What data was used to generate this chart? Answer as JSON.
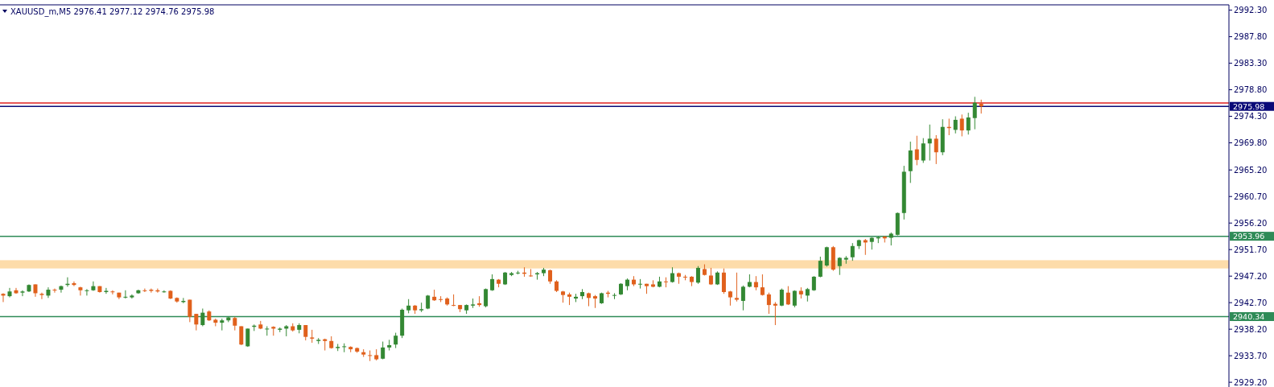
{
  "chart_data": {
    "type": "candlestick",
    "title": "XAUUSD_m,M5 2976.41 2977.12 2974.76 2975.98",
    "categories": [
      null,
      null,
      null,
      null,
      null,
      null,
      null,
      null,
      null,
      null,
      null,
      null,
      null,
      null,
      null,
      null,
      null,
      null,
      null,
      null,
      null,
      null,
      null,
      null,
      null,
      null,
      null,
      null,
      null,
      null,
      null,
      null,
      null,
      null,
      null,
      null,
      null,
      null,
      null,
      null,
      null,
      null,
      null,
      null,
      null,
      null,
      null,
      null,
      null,
      null,
      null,
      null,
      null,
      null,
      null,
      null,
      null,
      null,
      null,
      null,
      null,
      null,
      null,
      null,
      null,
      null,
      null,
      null,
      null,
      null,
      null,
      null,
      null,
      null,
      null,
      null,
      null,
      null,
      null,
      null,
      null,
      null,
      null,
      null,
      null,
      null,
      null,
      null,
      null,
      null,
      null,
      null,
      null,
      null,
      null,
      null,
      null,
      null,
      null,
      null,
      null,
      null,
      null,
      null,
      null,
      null,
      null,
      null,
      null,
      null,
      null,
      null,
      null,
      null,
      null,
      null,
      null,
      null,
      null,
      null,
      null,
      null,
      null,
      null,
      null,
      null,
      null,
      null,
      null,
      null,
      null,
      null,
      null,
      null,
      null,
      null,
      null,
      null,
      null,
      null,
      null,
      null,
      null,
      null,
      null,
      null,
      null,
      null,
      null,
      null,
      null,
      null,
      null,
      null,
      null,
      null,
      null,
      null,
      null,
      null,
      null,
      null,
      null,
      null,
      null,
      null,
      null,
      null,
      null,
      null,
      null,
      null,
      null,
      null,
      null,
      null,
      null,
      null,
      null,
      null,
      null,
      null,
      null,
      null,
      null,
      null,
      null,
      null,
      null,
      null,
      null
    ],
    "ohlc": [
      [
        2944.2,
        2944.3,
        2942.8,
        2943.9
      ],
      [
        2943.8,
        2945.2,
        2943.6,
        2944.6
      ],
      [
        2944.8,
        2945.2,
        2944.2,
        2944.3
      ],
      [
        2944.4,
        2944.8,
        2943.8,
        2944.6
      ],
      [
        2944.6,
        2945.8,
        2944.5,
        2945.7
      ],
      [
        2945.8,
        2945.8,
        2943.7,
        2944.3
      ],
      [
        2944.2,
        2944.4,
        2943.3,
        2944.0
      ],
      [
        2943.9,
        2945.3,
        2943.5,
        2944.9
      ],
      [
        2944.9,
        2945.1,
        2944.4,
        2944.8
      ],
      [
        2944.9,
        2945.6,
        2944.4,
        2945.5
      ],
      [
        2945.7,
        2947.0,
        2945.4,
        2945.9
      ],
      [
        2946.0,
        2946.3,
        2945.5,
        2945.7
      ],
      [
        2945.3,
        2945.4,
        2943.9,
        2944.8
      ],
      [
        2944.7,
        2945.0,
        2943.9,
        2944.8
      ],
      [
        2944.8,
        2946.3,
        2944.7,
        2945.5
      ],
      [
        2945.5,
        2945.5,
        2944.4,
        2944.5
      ],
      [
        2944.5,
        2945.2,
        2944.2,
        2944.7
      ],
      [
        2944.6,
        2944.8,
        2944.1,
        2944.5
      ],
      [
        2944.4,
        2944.4,
        2943.3,
        2943.6
      ],
      [
        2943.6,
        2944.8,
        2943.4,
        2943.7
      ],
      [
        2943.6,
        2944.1,
        2943.4,
        2943.9
      ],
      [
        2944.3,
        2944.9,
        2944.2,
        2944.8
      ],
      [
        2944.8,
        2945.1,
        2944.5,
        2944.7
      ],
      [
        2944.9,
        2945.1,
        2944.4,
        2944.7
      ],
      [
        2944.8,
        2945.1,
        2944.4,
        2944.6
      ],
      [
        2944.5,
        2944.8,
        2944.4,
        2944.6
      ],
      [
        2944.7,
        2944.8,
        2943.3,
        2943.4
      ],
      [
        2943.5,
        2943.6,
        2942.7,
        2942.9
      ],
      [
        2942.8,
        2943.5,
        2942.6,
        2943.0
      ],
      [
        2943.2,
        2943.2,
        2939.4,
        2940.3
      ],
      [
        2940.8,
        2940.8,
        2938.0,
        2939.0
      ],
      [
        2938.9,
        2941.7,
        2938.7,
        2941.0
      ],
      [
        2941.2,
        2941.4,
        2939.6,
        2939.7
      ],
      [
        2939.8,
        2940.0,
        2938.7,
        2939.3
      ],
      [
        2939.3,
        2940.0,
        2938.0,
        2939.7
      ],
      [
        2939.7,
        2940.3,
        2939.4,
        2940.2
      ],
      [
        2940.1,
        2940.3,
        2938.0,
        2938.8
      ],
      [
        2938.7,
        2938.7,
        2935.5,
        2935.6
      ],
      [
        2935.3,
        2938.3,
        2935.2,
        2938.3
      ],
      [
        2938.6,
        2939.0,
        2937.9,
        2938.8
      ],
      [
        2939.0,
        2939.6,
        2938.2,
        2938.3
      ],
      [
        2938.2,
        2938.7,
        2937.1,
        2938.3
      ],
      [
        2938.6,
        2938.7,
        2937.1,
        2938.3
      ],
      [
        2938.1,
        2938.5,
        2937.7,
        2938.3
      ],
      [
        2938.3,
        2938.9,
        2937.0,
        2938.7
      ],
      [
        2938.7,
        2939.2,
        2937.8,
        2938.0
      ],
      [
        2938.1,
        2939.2,
        2937.5,
        2938.9
      ],
      [
        2938.9,
        2938.9,
        2936.3,
        2936.9
      ],
      [
        2936.8,
        2938.1,
        2935.9,
        2936.6
      ],
      [
        2936.2,
        2936.7,
        2935.7,
        2936.4
      ],
      [
        2936.5,
        2936.6,
        2934.6,
        2936.2
      ],
      [
        2936.2,
        2937.0,
        2934.9,
        2935.0
      ],
      [
        2935.0,
        2935.7,
        2934.5,
        2935.2
      ],
      [
        2935.2,
        2935.8,
        2934.3,
        2935.3
      ],
      [
        2935.2,
        2935.3,
        2934.3,
        2934.8
      ],
      [
        2935.0,
        2935.1,
        2934.2,
        2934.4
      ],
      [
        2934.3,
        2934.8,
        2933.5,
        2933.9
      ],
      [
        2933.8,
        2934.6,
        2932.8,
        2933.7
      ],
      [
        2933.8,
        2934.8,
        2932.9,
        2933.1
      ],
      [
        2933.2,
        2936.1,
        2933.1,
        2935.1
      ],
      [
        2935.1,
        2936.4,
        2934.6,
        2935.5
      ],
      [
        2935.6,
        2937.6,
        2935.0,
        2937.1
      ],
      [
        2937.1,
        2941.7,
        2936.7,
        2941.5
      ],
      [
        2941.4,
        2943.3,
        2940.9,
        2942.2
      ],
      [
        2942.2,
        2942.3,
        2940.8,
        2941.4
      ],
      [
        2941.4,
        2942.7,
        2941.1,
        2941.6
      ],
      [
        2941.7,
        2944.0,
        2941.6,
        2943.9
      ],
      [
        2943.7,
        2944.9,
        2943.0,
        2943.1
      ],
      [
        2943.3,
        2943.8,
        2942.8,
        2943.2
      ],
      [
        2943.4,
        2943.6,
        2942.2,
        2942.4
      ],
      [
        2942.3,
        2944.1,
        2942.1,
        2942.2
      ],
      [
        2942.3,
        2942.3,
        2941.1,
        2941.6
      ],
      [
        2941.4,
        2942.4,
        2940.8,
        2942.3
      ],
      [
        2942.2,
        2943.4,
        2941.8,
        2942.4
      ],
      [
        2942.6,
        2943.8,
        2942.0,
        2942.3
      ],
      [
        2942.1,
        2945.1,
        2941.9,
        2945.0
      ],
      [
        2944.8,
        2947.5,
        2944.7,
        2946.7
      ],
      [
        2946.6,
        2946.7,
        2945.3,
        2945.9
      ],
      [
        2945.8,
        2947.9,
        2945.7,
        2947.8
      ],
      [
        2947.4,
        2947.9,
        2947.2,
        2947.7
      ],
      [
        2947.7,
        2948.1,
        2947.5,
        2947.8
      ],
      [
        2947.8,
        2948.7,
        2947.1,
        2947.6
      ],
      [
        2947.3,
        2948.4,
        2947.1,
        2947.2
      ],
      [
        2947.5,
        2947.9,
        2946.6,
        2947.7
      ],
      [
        2947.7,
        2948.6,
        2947.2,
        2948.3
      ],
      [
        2948.2,
        2948.3,
        2945.9,
        2946.3
      ],
      [
        2946.3,
        2946.5,
        2944.5,
        2944.7
      ],
      [
        2944.6,
        2944.7,
        2942.7,
        2944.0
      ],
      [
        2944.1,
        2944.4,
        2942.3,
        2943.7
      ],
      [
        2943.4,
        2944.2,
        2942.8,
        2943.7
      ],
      [
        2943.8,
        2945.0,
        2943.3,
        2944.5
      ],
      [
        2944.3,
        2944.4,
        2942.1,
        2943.5
      ],
      [
        2943.8,
        2944.0,
        2941.8,
        2943.4
      ],
      [
        2942.6,
        2944.4,
        2942.5,
        2944.3
      ],
      [
        2944.4,
        2944.7,
        2943.6,
        2944.2
      ],
      [
        2943.9,
        2944.3,
        2943.3,
        2944.0
      ],
      [
        2944.1,
        2946.0,
        2944.0,
        2945.9
      ],
      [
        2945.5,
        2946.8,
        2944.8,
        2946.6
      ],
      [
        2946.6,
        2947.2,
        2945.5,
        2945.8
      ],
      [
        2945.8,
        2946.7,
        2945.1,
        2945.9
      ],
      [
        2945.9,
        2945.9,
        2944.2,
        2945.5
      ],
      [
        2945.8,
        2946.5,
        2945.3,
        2945.4
      ],
      [
        2945.4,
        2947.1,
        2945.3,
        2946.3
      ],
      [
        2946.3,
        2947.0,
        2945.3,
        2946.2
      ],
      [
        2946.2,
        2948.7,
        2946.1,
        2947.7
      ],
      [
        2947.7,
        2947.8,
        2945.9,
        2947.1
      ],
      [
        2947.1,
        2947.4,
        2946.5,
        2947.0
      ],
      [
        2947.1,
        2947.2,
        2945.5,
        2946.2
      ],
      [
        2946.1,
        2948.9,
        2945.9,
        2948.6
      ],
      [
        2948.4,
        2949.2,
        2947.3,
        2947.4
      ],
      [
        2947.3,
        2948.6,
        2945.7,
        2945.8
      ],
      [
        2945.8,
        2948.0,
        2945.7,
        2947.8
      ],
      [
        2947.8,
        2948.5,
        2944.2,
        2944.5
      ],
      [
        2944.6,
        2944.7,
        2942.2,
        2943.6
      ],
      [
        2943.5,
        2947.8,
        2942.9,
        2943.2
      ],
      [
        2943.0,
        2945.6,
        2941.4,
        2945.4
      ],
      [
        2945.4,
        2947.5,
        2945.3,
        2946.2
      ],
      [
        2946.2,
        2947.2,
        2944.8,
        2945.3
      ],
      [
        2945.3,
        2947.5,
        2943.9,
        2944.0
      ],
      [
        2944.1,
        2944.4,
        2940.8,
        2942.3
      ],
      [
        2942.5,
        2942.8,
        2938.9,
        2942.2
      ],
      [
        2942.2,
        2945.1,
        2942.1,
        2944.9
      ],
      [
        2944.4,
        2945.5,
        2942.3,
        2942.4
      ],
      [
        2942.2,
        2944.8,
        2941.9,
        2944.7
      ],
      [
        2944.7,
        2945.3,
        2943.4,
        2944.1
      ],
      [
        2943.9,
        2945.2,
        2942.9,
        2945.0
      ],
      [
        2944.8,
        2947.2,
        2944.7,
        2947.1
      ],
      [
        2947.1,
        2950.5,
        2947.0,
        2949.8
      ],
      [
        2949.0,
        2952.2,
        2948.8,
        2952.1
      ],
      [
        2952.1,
        2952.3,
        2948.1,
        2948.3
      ],
      [
        2948.9,
        2950.4,
        2947.4,
        2950.3
      ],
      [
        2950.0,
        2950.6,
        2949.3,
        2950.3
      ],
      [
        2950.4,
        2952.8,
        2949.8,
        2952.3
      ],
      [
        2952.3,
        2953.4,
        2951.8,
        2953.3
      ],
      [
        2953.3,
        2953.5,
        2950.8,
        2952.9
      ],
      [
        2953.0,
        2953.8,
        2951.7,
        2953.7
      ],
      [
        2953.6,
        2953.9,
        2952.8,
        2953.8
      ],
      [
        2953.9,
        2954.0,
        2952.9,
        2953.6
      ],
      [
        2953.7,
        2954.6,
        2952.4,
        2954.4
      ],
      [
        2954.2,
        2958.0,
        2954.1,
        2957.9
      ],
      [
        2957.9,
        2965.9,
        2956.8,
        2964.9
      ],
      [
        2965.0,
        2970.0,
        2963.0,
        2968.5
      ],
      [
        2968.7,
        2971.0,
        2966.0,
        2966.9
      ],
      [
        2966.8,
        2970.6,
        2966.4,
        2969.7
      ],
      [
        2969.7,
        2972.9,
        2966.8,
        2970.5
      ],
      [
        2970.5,
        2971.1,
        2966.2,
        2968.2
      ],
      [
        2968.2,
        2973.8,
        2967.7,
        2972.5
      ],
      [
        2972.5,
        2973.9,
        2971.1,
        2972.3
      ],
      [
        2972.0,
        2974.3,
        2971.4,
        2973.7
      ],
      [
        2973.9,
        2974.6,
        2970.9,
        2971.9
      ],
      [
        2971.9,
        2974.9,
        2971.2,
        2974.1
      ],
      [
        2974.0,
        2977.6,
        2972.1,
        2976.6
      ],
      [
        2976.41,
        2977.12,
        2974.76,
        2975.98
      ],
      null,
      null,
      null,
      null,
      null,
      null,
      null,
      null,
      null,
      null,
      null,
      null,
      null,
      null,
      null,
      null,
      null,
      null,
      null,
      null,
      null,
      null,
      null,
      null,
      null,
      null,
      null,
      null,
      null,
      null,
      null,
      null,
      null,
      null,
      null,
      null,
      null,
      null
    ],
    "colors": [
      "#e0601c",
      "#338833",
      "#e0601c",
      "#338833",
      "#338833",
      "#e0601c",
      "#e0601c",
      "#338833",
      "#e0601c",
      "#338833",
      "#338833",
      "#e0601c",
      "#e0601c",
      "#338833",
      "#338833",
      "#e0601c",
      "#338833",
      "#e0601c",
      "#e0601c",
      "#338833",
      "#338833",
      "#338833",
      "#e0601c",
      "#e0601c",
      "#e0601c",
      "#338833",
      "#e0601c",
      "#e0601c",
      "#338833",
      "#e0601c",
      "#e0601c",
      "#338833",
      "#e0601c",
      "#e0601c",
      "#338833",
      "#338833",
      "#e0601c",
      "#e0601c",
      "#338833",
      "#338833",
      "#e0601c",
      "#338833",
      "#e0601c",
      "#338833",
      "#338833",
      "#e0601c",
      "#338833",
      "#e0601c",
      "#e0601c",
      "#338833",
      "#e0601c",
      "#e0601c",
      "#338833",
      "#338833",
      "#e0601c",
      "#e0601c",
      "#e0601c",
      "#e0601c",
      "#e0601c",
      "#338833",
      "#338833",
      "#338833",
      "#338833",
      "#338833",
      "#e0601c",
      "#338833",
      "#338833",
      "#e0601c",
      "#e0601c",
      "#e0601c",
      "#e0601c",
      "#e0601c",
      "#338833",
      "#338833",
      "#e0601c",
      "#338833",
      "#338833",
      "#e0601c",
      "#338833",
      "#338833",
      "#338833",
      "#e0601c",
      "#e0601c",
      "#338833",
      "#338833",
      "#e0601c",
      "#e0601c",
      "#e0601c",
      "#e0601c",
      "#338833",
      "#338833",
      "#e0601c",
      "#e0601c",
      "#338833",
      "#e0601c",
      "#338833",
      "#338833",
      "#338833",
      "#e0601c",
      "#338833",
      "#e0601c",
      "#e0601c",
      "#338833",
      "#e0601c",
      "#338833",
      "#e0601c",
      "#e0601c",
      "#e0601c",
      "#338833",
      "#e0601c",
      "#e0601c",
      "#338833",
      "#e0601c",
      "#e0601c",
      "#e0601c",
      "#338833",
      "#338833",
      "#e0601c",
      "#e0601c",
      "#e0601c",
      "#e0601c",
      "#338833",
      "#e0601c",
      "#338833",
      "#e0601c",
      "#338833",
      "#338833",
      "#338833",
      "#338833",
      "#e0601c",
      "#338833",
      "#338833",
      "#338833",
      "#338833",
      "#e0601c",
      "#338833",
      "#338833",
      "#e0601c",
      "#338833",
      "#338833",
      "#338833",
      "#338833",
      "#e0601c",
      "#338833",
      "#338833",
      "#e0601c",
      "#338833",
      "#e0601c",
      "#338833",
      "#e0601c",
      "#338833",
      "#338833",
      "#e0601c",
      null,
      null,
      null,
      null,
      null,
      null,
      null,
      null,
      null,
      null,
      null,
      null,
      null,
      null,
      null,
      null,
      null,
      null,
      null,
      null,
      null,
      null,
      null,
      null,
      null,
      null,
      null,
      null,
      null,
      null,
      null,
      null,
      null,
      null,
      null,
      null,
      null,
      null
    ],
    "ylim": [
      2928.4,
      2993.2
    ],
    "yticks": [
      {
        "value": 2992.3,
        "label": "2992.30"
      },
      {
        "value": 2987.8,
        "label": "2987.80"
      },
      {
        "value": 2983.3,
        "label": "2983.30"
      },
      {
        "value": 2978.8,
        "label": "2978.80"
      },
      {
        "value": 2974.3,
        "label": "2974.30"
      },
      {
        "value": 2969.8,
        "label": "2969.80"
      },
      {
        "value": 2965.2,
        "label": "2965.20"
      },
      {
        "value": 2960.7,
        "label": "2960.70"
      },
      {
        "value": 2956.2,
        "label": "2956.20"
      },
      {
        "value": 2951.7,
        "label": "2951.70"
      },
      {
        "value": 2947.2,
        "label": "2947.20"
      },
      {
        "value": 2942.7,
        "label": "2942.70"
      },
      {
        "value": 2938.2,
        "label": "2938.20"
      },
      {
        "value": 2933.7,
        "label": "2933.70"
      },
      {
        "value": 2929.2,
        "label": "2929.20"
      }
    ],
    "ref_lines": [
      {
        "axis": "y",
        "value": 2976.54,
        "color": "#e02020"
      },
      {
        "axis": "y",
        "value": 2975.98,
        "label": "2975.98",
        "color": "#0a0a78"
      },
      {
        "axis": "y",
        "value": 2953.96,
        "label": "2953.96",
        "color": "#2e8b57"
      },
      {
        "axis": "y",
        "value": 2940.34,
        "label": "2940.34",
        "color": "#2e8b57"
      }
    ],
    "bands": [
      {
        "axis": "y",
        "from": 2948.5,
        "to": 2949.9,
        "color": "#fddcaa"
      }
    ],
    "tick_labels": "y"
  }
}
